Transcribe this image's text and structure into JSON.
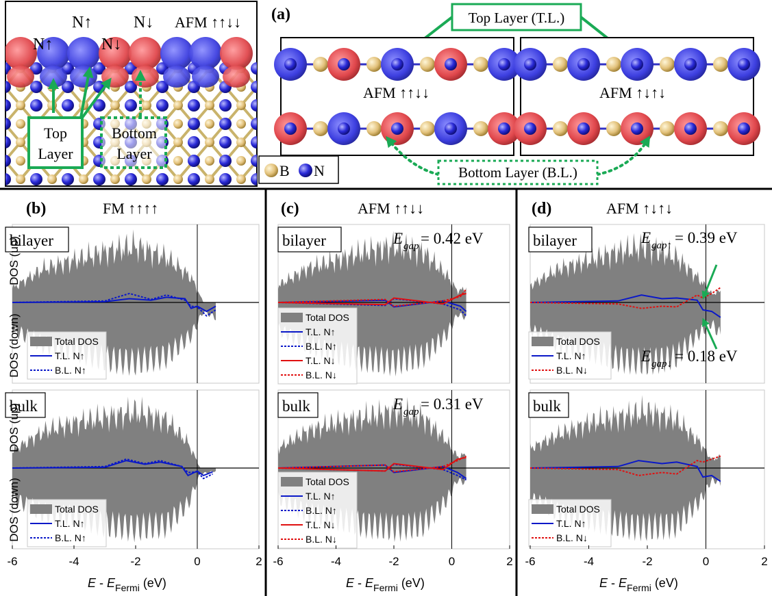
{
  "figure": {
    "top_left": {
      "labels": [
        "N↑",
        "N↑",
        "N↓",
        "N↓"
      ],
      "afm_label": "AFM ↑↑↓↓",
      "top_layer_label": [
        "Top",
        "Layer"
      ],
      "bottom_layer_label": [
        "Bottom",
        "Layer"
      ]
    },
    "panel_a": {
      "letter": "(a)",
      "top_layer_caption": "Top Layer (T.L.)",
      "bottom_layer_caption": "Bottom Layer (B.L.)",
      "left_label": "AFM ↑↑↓↓",
      "right_label": "AFM ↑↓↑↓",
      "legend_b": "B",
      "legend_n": "N"
    },
    "colors": {
      "spin_up": "#3d3fe0",
      "spin_down": "#e0474c",
      "boron": "#e6c77e",
      "nitrogen": "#2b2bd6",
      "arrow_green": "#1aaa55",
      "total_dos": "#808080",
      "tl_line": "#0a18c8",
      "red_line": "#e01010"
    }
  },
  "chart_data": [
    {
      "type": "area",
      "panel": "(b)",
      "title": "FM ↑↑↑↑",
      "sublabel": "bilayer",
      "ylabel_up": "DOS (up)",
      "ylabel_down": "DOS (down)",
      "xlim": [
        -6,
        2
      ],
      "series": [
        {
          "name": "Total DOS",
          "x": [
            -6,
            -5,
            -4,
            -3,
            -2,
            -1,
            -0.2,
            0.2,
            0.6
          ],
          "up": [
            0.25,
            0.6,
            0.75,
            0.9,
            1.0,
            0.8,
            0.45,
            0.0,
            0.0
          ],
          "down": [
            0.45,
            0.7,
            0.8,
            0.95,
            1.0,
            0.9,
            0.55,
            0.15,
            0.25
          ]
        },
        {
          "name": "T.L. N↑",
          "x": [
            -6,
            -3,
            -2.2,
            -1.5,
            -1,
            -0.4,
            -0.2,
            0,
            0.3,
            0.6
          ],
          "y": [
            0.0,
            0.01,
            0.05,
            0.03,
            0.07,
            0.05,
            -0.08,
            -0.05,
            -0.12,
            -0.05
          ]
        },
        {
          "name": "B.L. N↑",
          "x": [
            -6,
            -3,
            -2.2,
            -1.5,
            -1,
            -0.4,
            -0.2,
            0,
            0.3,
            0.6
          ],
          "y": [
            0.0,
            0.02,
            0.12,
            0.04,
            0.1,
            0.03,
            -0.05,
            -0.06,
            -0.18,
            -0.1
          ]
        }
      ],
      "legend": [
        "Total DOS",
        "T.L. N↑",
        "B.L. N↑"
      ]
    },
    {
      "type": "area",
      "panel": "(b)",
      "sublabel": "bulk",
      "ylabel_up": "DOS (up)",
      "ylabel_down": "DOS (down)",
      "xlabel": "E - E Fermi (eV)",
      "xlim": [
        -6,
        2
      ],
      "xticks": [
        -6,
        -4,
        -2,
        0,
        2
      ],
      "series": [
        {
          "name": "Total DOS",
          "x": [
            -6,
            -5,
            -4,
            -3,
            -2,
            -1,
            -0.3,
            0.1,
            0.6
          ],
          "up": [
            0.3,
            0.65,
            0.8,
            0.9,
            1.0,
            0.85,
            0.45,
            0.0,
            0.0
          ],
          "down": [
            0.5,
            0.75,
            0.8,
            0.95,
            1.0,
            0.95,
            0.6,
            0.1,
            0.05
          ]
        },
        {
          "name": "T.L. N↑",
          "x": [
            -6,
            -3,
            -2.3,
            -1.7,
            -1.2,
            -0.5,
            -0.3,
            0,
            0.2,
            0.5
          ],
          "y": [
            0.0,
            0.01,
            0.1,
            0.05,
            0.08,
            0.02,
            -0.1,
            -0.04,
            -0.1,
            -0.05
          ]
        },
        {
          "name": "B.L. N↑",
          "x": [
            -6,
            -3,
            -2.3,
            -1.7,
            -1.2,
            -0.5,
            -0.3,
            0,
            0.2,
            0.5
          ],
          "y": [
            0.0,
            0.02,
            0.12,
            0.06,
            0.1,
            0.02,
            -0.06,
            -0.05,
            -0.14,
            -0.08
          ]
        }
      ],
      "legend": [
        "Total DOS",
        "T.L. N↑",
        "B.L. N↑"
      ]
    },
    {
      "type": "area",
      "panel": "(c)",
      "title": "AFM ↑↑↓↓",
      "sublabel": "bilayer",
      "gap_label": "= 0.42 eV",
      "xlim": [
        -6,
        2
      ],
      "series": [
        {
          "name": "Total DOS",
          "x": [
            -6,
            -5,
            -4,
            -3,
            -2,
            -1,
            -0.2,
            0.2,
            0.5
          ],
          "up": [
            0.3,
            0.6,
            0.75,
            0.9,
            1.0,
            0.9,
            0.5,
            0.2,
            0.25
          ],
          "down": [
            0.45,
            0.7,
            0.85,
            0.95,
            1.0,
            0.9,
            0.55,
            0.2,
            0.25
          ]
        },
        {
          "name": "T.L. N↑",
          "x": [
            -6,
            -2.3,
            -2,
            -0.3,
            0.3,
            0.5
          ],
          "y": [
            0.0,
            0.03,
            -0.06,
            0.02,
            -0.05,
            -0.12
          ]
        },
        {
          "name": "B.L. N↑",
          "x": [
            -6,
            -2.3,
            -2,
            -0.3,
            0.3,
            0.5
          ],
          "y": [
            0.0,
            -0.04,
            0.05,
            -0.02,
            -0.1,
            -0.18
          ]
        },
        {
          "name": "T.L. N↓",
          "x": [
            -6,
            -2.3,
            -2,
            -0.3,
            0.3,
            0.5
          ],
          "y": [
            0.0,
            -0.03,
            0.06,
            -0.02,
            0.1,
            0.12
          ]
        },
        {
          "name": "B.L. N↓",
          "x": [
            -6,
            -2.3,
            -2,
            -0.3,
            0.3,
            0.5
          ],
          "y": [
            0.0,
            0.04,
            -0.05,
            0.02,
            0.08,
            0.18
          ]
        }
      ],
      "legend": [
        "Total DOS",
        "T.L. N↑",
        "B.L. N↑",
        "T.L. N↓",
        "B.L. N↓"
      ]
    },
    {
      "type": "area",
      "panel": "(c)",
      "sublabel": "bulk",
      "gap_label": "= 0.31 eV",
      "xlabel": "E - E Fermi (eV)",
      "xlim": [
        -6,
        2
      ],
      "xticks": [
        -6,
        -4,
        -2,
        0,
        2
      ],
      "series": [
        {
          "name": "Total DOS",
          "x": [
            -6,
            -5,
            -4,
            -3,
            -2,
            -1,
            -0.2,
            0.2,
            0.5
          ],
          "up": [
            0.35,
            0.65,
            0.8,
            0.9,
            1.0,
            0.9,
            0.5,
            0.2,
            0.25
          ],
          "down": [
            0.5,
            0.75,
            0.85,
            0.95,
            1.0,
            0.95,
            0.55,
            0.2,
            0.25
          ]
        },
        {
          "name": "T.L. N↑",
          "x": [
            -6,
            -2.3,
            -2,
            -0.3,
            0.2,
            0.5
          ],
          "y": [
            0.0,
            0.04,
            -0.06,
            0.02,
            -0.06,
            -0.14
          ]
        },
        {
          "name": "B.L. N↑",
          "x": [
            -6,
            -2.3,
            -2,
            -0.3,
            0.2,
            0.5
          ],
          "y": [
            0.0,
            -0.04,
            0.05,
            -0.02,
            -0.1,
            -0.16
          ]
        },
        {
          "name": "T.L. N↓",
          "x": [
            -6,
            -2.3,
            -2,
            -0.3,
            0.2,
            0.5
          ],
          "y": [
            0.0,
            -0.04,
            0.06,
            -0.02,
            0.12,
            0.14
          ]
        },
        {
          "name": "B.L. N↓",
          "x": [
            -6,
            -2.3,
            -2,
            -0.3,
            0.2,
            0.5
          ],
          "y": [
            0.0,
            0.04,
            -0.05,
            0.02,
            0.1,
            0.16
          ]
        }
      ],
      "legend": [
        "Total DOS",
        "T.L. N↑",
        "B.L. N↑",
        "T.L. N↓",
        "B.L. N↓"
      ]
    },
    {
      "type": "area",
      "panel": "(d)",
      "title": "AFM ↑↓↑↓",
      "sublabel": "bilayer",
      "gap_up_label": "= 0.39 eV",
      "gap_down_label": "= 0.18 eV",
      "xlim": [
        -6,
        2
      ],
      "series": [
        {
          "name": "Total DOS",
          "x": [
            -6,
            -5,
            -4,
            -3,
            -2,
            -1,
            -0.2,
            0.2,
            0.5
          ],
          "up": [
            0.3,
            0.6,
            0.75,
            0.9,
            1.0,
            0.8,
            0.4,
            0.15,
            0.2
          ],
          "down": [
            0.45,
            0.7,
            0.8,
            0.95,
            1.0,
            0.9,
            0.5,
            0.35,
            0.55
          ]
        },
        {
          "name": "T.L. N↑",
          "x": [
            -6,
            -3,
            -2.2,
            -1.5,
            -1,
            -0.3,
            -0.1,
            0.2,
            0.5
          ],
          "y": [
            0.0,
            0.02,
            0.1,
            0.05,
            0.06,
            0.03,
            -0.1,
            -0.12,
            -0.2
          ]
        },
        {
          "name": "B.L. N↓",
          "x": [
            -6,
            -3,
            -2.2,
            -1.5,
            -1,
            -0.3,
            -0.1,
            0.2,
            0.5
          ],
          "y": [
            0.0,
            -0.02,
            -0.08,
            -0.05,
            -0.06,
            0.1,
            0.06,
            0.12,
            0.2
          ]
        }
      ],
      "legend": [
        "Total DOS",
        "T.L. N↑",
        "B.L. N↓"
      ]
    },
    {
      "type": "area",
      "panel": "(d)",
      "sublabel": "bulk",
      "xlabel": "E - E Fermi (eV)",
      "xlim": [
        -6,
        2
      ],
      "xticks": [
        -6,
        -4,
        -2,
        0,
        2
      ],
      "series": [
        {
          "name": "Total DOS",
          "x": [
            -6,
            -5,
            -4,
            -3,
            -2,
            -1,
            -0.2,
            0.2,
            0.5
          ],
          "up": [
            0.35,
            0.6,
            0.8,
            0.9,
            1.0,
            0.85,
            0.45,
            0.15,
            0.2
          ],
          "down": [
            0.5,
            0.75,
            0.85,
            0.95,
            1.0,
            0.95,
            0.55,
            0.2,
            0.25
          ]
        },
        {
          "name": "T.L. N↑",
          "x": [
            -6,
            -3,
            -2.3,
            -1.5,
            -1,
            -0.3,
            -0.1,
            0.2,
            0.5
          ],
          "y": [
            0.0,
            0.02,
            0.1,
            0.06,
            0.08,
            0.02,
            -0.12,
            -0.1,
            -0.18
          ]
        },
        {
          "name": "B.L. N↓",
          "x": [
            -6,
            -3,
            -2.3,
            -1.5,
            -1,
            -0.3,
            -0.1,
            0.2,
            0.5
          ],
          "y": [
            0.0,
            -0.02,
            -0.1,
            -0.06,
            -0.08,
            0.1,
            0.08,
            0.12,
            0.16
          ]
        }
      ],
      "legend": [
        "Total DOS",
        "T.L. N↑",
        "B.L. N↓"
      ]
    }
  ]
}
